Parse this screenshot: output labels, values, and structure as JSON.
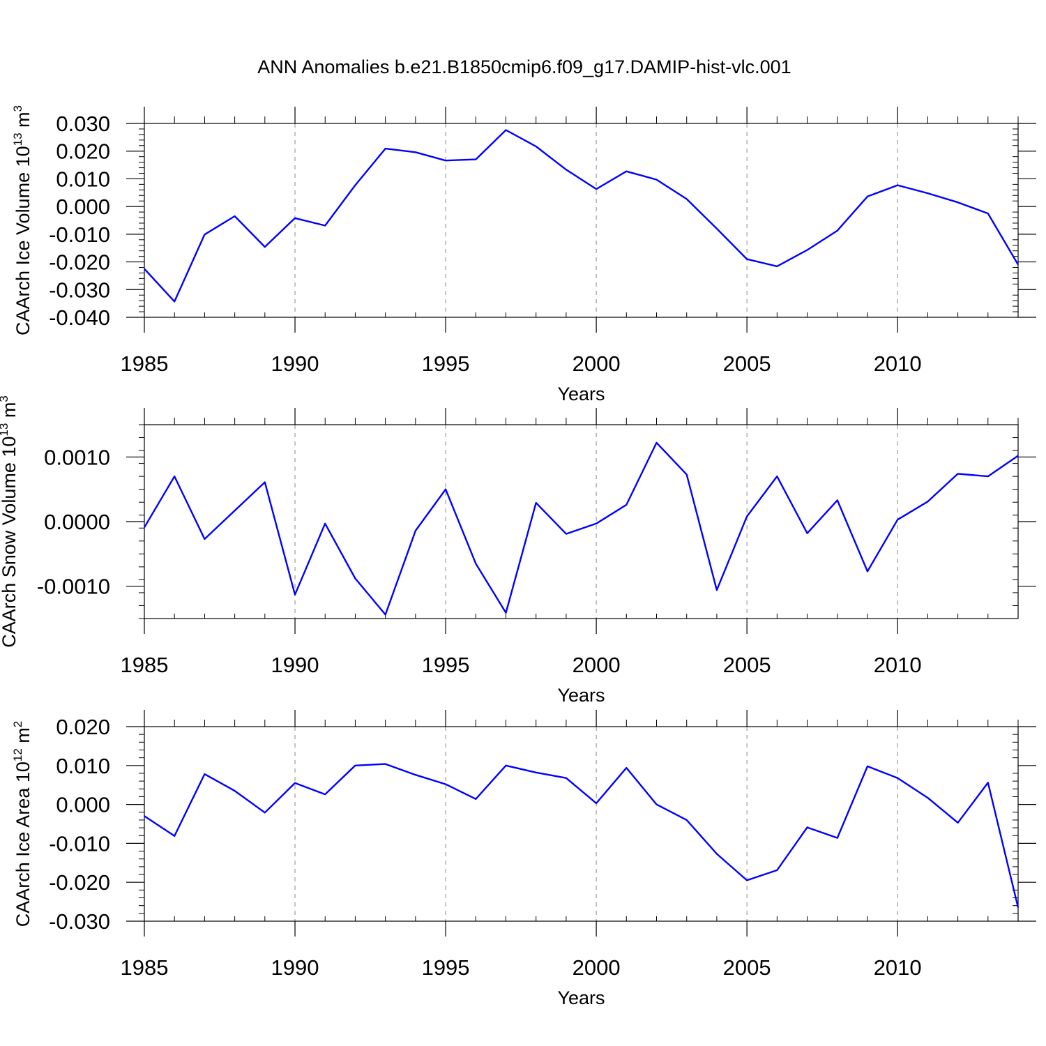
{
  "title": "ANN Anomalies b.e21.B1850cmip6.f09_g17.DAMIP-hist-vlc.001",
  "colors": {
    "line": "#0000ff",
    "axis": "#000000",
    "grid": "#888888"
  },
  "chart_data": [
    {
      "type": "line",
      "ylabel": "CAArch Ice Volume 10",
      "ylabel_exp": "13",
      "ylabel_unit": " m",
      "ylabel_unit_exp": "3",
      "xlabel": "Years",
      "xlim": [
        1985,
        2014
      ],
      "ylim": [
        -0.04,
        0.03
      ],
      "yticks": [
        -0.04,
        -0.03,
        -0.02,
        -0.01,
        0.0,
        0.01,
        0.02,
        0.03
      ],
      "ytick_labels": [
        "-0.040",
        "-0.030",
        "-0.020",
        "-0.010",
        "0.000",
        "0.010",
        "0.020",
        "0.030"
      ],
      "yminor": 0.002,
      "xticks": [
        1985,
        1990,
        1995,
        2000,
        2005,
        2010
      ],
      "xtick_labels": [
        "1985",
        "1990",
        "1995",
        "2000",
        "2005",
        "2010"
      ],
      "grid": "vertical dashed at major x ticks",
      "x": [
        1985,
        1986,
        1987,
        1988,
        1989,
        1990,
        1991,
        1992,
        1993,
        1994,
        1995,
        1996,
        1997,
        1998,
        1999,
        2000,
        2001,
        2002,
        2003,
        2004,
        2005,
        2006,
        2007,
        2008,
        2009,
        2010,
        2011,
        2012,
        2013,
        2014
      ],
      "series": [
        {
          "values": [
            -0.0225,
            -0.0343,
            -0.0101,
            -0.0035,
            -0.0146,
            -0.0042,
            -0.0069,
            0.0077,
            0.0209,
            0.0196,
            0.0166,
            0.017,
            0.0276,
            0.0217,
            0.0133,
            0.0063,
            0.0127,
            0.0097,
            0.0027,
            -0.008,
            -0.019,
            -0.0216,
            -0.0157,
            -0.0087,
            0.0036,
            0.0077,
            0.0048,
            0.0015,
            -0.0025,
            -0.021
          ]
        }
      ]
    },
    {
      "type": "line",
      "ylabel": "CAArch Snow Volume 10",
      "ylabel_exp": "13",
      "ylabel_unit": " m",
      "ylabel_unit_exp": "3",
      "xlabel": "Years",
      "xlim": [
        1985,
        2014
      ],
      "ylim": [
        -0.0015,
        0.0015
      ],
      "yticks": [
        -0.001,
        0.0,
        0.001
      ],
      "ytick_labels": [
        "-0.0010",
        "0.0000",
        "0.0010"
      ],
      "yminor": 0.0002,
      "xticks": [
        1985,
        1990,
        1995,
        2000,
        2005,
        2010
      ],
      "xtick_labels": [
        "1985",
        "1990",
        "1995",
        "2000",
        "2005",
        "2010"
      ],
      "grid": "vertical dashed at major x ticks",
      "x": [
        1985,
        1986,
        1987,
        1988,
        1989,
        1990,
        1991,
        1992,
        1993,
        1994,
        1995,
        1996,
        1997,
        1998,
        1999,
        2000,
        2001,
        2002,
        2003,
        2004,
        2005,
        2006,
        2007,
        2008,
        2009,
        2010,
        2011,
        2012,
        2013,
        2014
      ],
      "series": [
        {
          "values": [
            -9e-05,
            0.0007,
            -0.00027,
            0.00017,
            0.00061,
            -0.00113,
            -3e-05,
            -0.00088,
            -0.00144,
            -0.00014,
            0.0005,
            -0.00065,
            -0.00141,
            0.00029,
            -0.00019,
            -3e-05,
            0.00026,
            0.00122,
            0.00073,
            -0.00106,
            8e-05,
            0.0007,
            -0.00018,
            0.00033,
            -0.00077,
            3e-05,
            0.00031,
            0.00074,
            0.0007,
            0.00102
          ]
        }
      ]
    },
    {
      "type": "line",
      "ylabel": "CAArch Ice Area 10",
      "ylabel_exp": "12",
      "ylabel_unit": " m",
      "ylabel_unit_exp": "2",
      "xlabel": "Years",
      "xlim": [
        1985,
        2014
      ],
      "ylim": [
        -0.03,
        0.02
      ],
      "yticks": [
        -0.03,
        -0.02,
        -0.01,
        0.0,
        0.01,
        0.02
      ],
      "ytick_labels": [
        "-0.030",
        "-0.020",
        "-0.010",
        "0.000",
        "0.010",
        "0.020"
      ],
      "yminor": 0.002,
      "xticks": [
        1985,
        1990,
        1995,
        2000,
        2005,
        2010
      ],
      "xtick_labels": [
        "1985",
        "1990",
        "1995",
        "2000",
        "2005",
        "2010"
      ],
      "grid": "vertical dashed at major x ticks",
      "x": [
        1985,
        1986,
        1987,
        1988,
        1989,
        1990,
        1991,
        1992,
        1993,
        1994,
        1995,
        1996,
        1997,
        1998,
        1999,
        2000,
        2001,
        2002,
        2003,
        2004,
        2005,
        2006,
        2007,
        2008,
        2009,
        2010,
        2011,
        2012,
        2013,
        2014
      ],
      "series": [
        {
          "values": [
            -0.003,
            -0.0081,
            0.0078,
            0.0035,
            -0.0021,
            0.0055,
            0.0026,
            0.01,
            0.0104,
            0.0076,
            0.0052,
            0.0014,
            0.01,
            0.0082,
            0.0068,
            0.0003,
            0.0094,
            0.0,
            -0.004,
            -0.0127,
            -0.0195,
            -0.0169,
            -0.0059,
            -0.0086,
            0.0098,
            0.0068,
            0.0017,
            -0.0047,
            0.0056,
            -0.0265
          ]
        }
      ]
    }
  ]
}
